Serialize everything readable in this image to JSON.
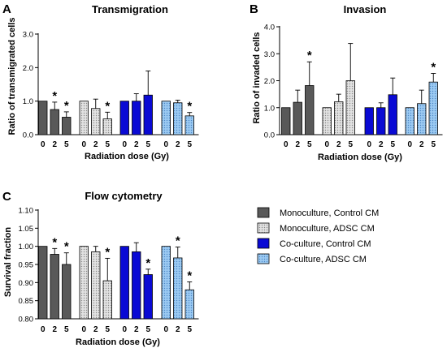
{
  "legend": [
    {
      "label": "Monoculture, Control CM",
      "color": "#595959",
      "pattern": "solid"
    },
    {
      "label": "Monoculture, ADSC CM",
      "color": "#d9d9d9",
      "pattern": "dots"
    },
    {
      "label": "Co-culture, Control CM",
      "color": "#0a0ad4",
      "pattern": "solid"
    },
    {
      "label": "Co-culture, ADSC CM",
      "color": "#8ec3f0",
      "pattern": "dots"
    }
  ],
  "chart_data": [
    {
      "panel": "A",
      "type": "bar",
      "title": "Transmigration",
      "xlabel": "Radiation dose (Gy)",
      "ylabel": "Ratio of transmigrated cells",
      "ylim": [
        0,
        3.0
      ],
      "yticks": [
        "0.0",
        "1.0",
        "2.0",
        "3.0"
      ],
      "categories": [
        "0",
        "2",
        "5"
      ],
      "series": [
        {
          "name": "Monoculture, Control CM",
          "values": [
            1.0,
            0.75,
            0.52
          ],
          "errors": [
            0,
            0.22,
            0.16
          ],
          "significant": [
            false,
            true,
            true
          ]
        },
        {
          "name": "Monoculture, ADSC CM",
          "values": [
            1.0,
            0.78,
            0.47
          ],
          "errors": [
            0,
            0.28,
            0.2
          ],
          "significant": [
            false,
            false,
            true
          ]
        },
        {
          "name": "Co-culture, Control CM",
          "values": [
            1.0,
            1.0,
            1.18
          ],
          "errors": [
            0,
            0.22,
            0.72
          ],
          "significant": [
            false,
            false,
            false
          ]
        },
        {
          "name": "Co-culture, ADSC CM",
          "values": [
            1.0,
            0.95,
            0.56
          ],
          "errors": [
            0,
            0.08,
            0.1
          ],
          "significant": [
            false,
            false,
            true
          ]
        }
      ]
    },
    {
      "panel": "B",
      "type": "bar",
      "title": "Invasion",
      "xlabel": "Radiation dose (Gy)",
      "ylabel": "Ratio of invaded cells",
      "ylim": [
        0,
        4.0
      ],
      "yticks": [
        "0.0",
        "1.0",
        "2.0",
        "3.0",
        "4.0"
      ],
      "categories": [
        "0",
        "2",
        "5"
      ],
      "series": [
        {
          "name": "Monoculture, Control CM",
          "values": [
            1.0,
            1.2,
            1.82
          ],
          "errors": [
            0,
            0.45,
            0.88
          ],
          "significant": [
            false,
            false,
            true
          ]
        },
        {
          "name": "Monoculture, ADSC CM",
          "values": [
            1.0,
            1.22,
            2.0
          ],
          "errors": [
            0,
            0.28,
            1.38
          ],
          "significant": [
            false,
            false,
            false
          ]
        },
        {
          "name": "Co-culture, Control CM",
          "values": [
            1.0,
            1.0,
            1.48
          ],
          "errors": [
            0,
            0.18,
            0.62
          ],
          "significant": [
            false,
            false,
            false
          ]
        },
        {
          "name": "Co-culture, ADSC CM",
          "values": [
            1.0,
            1.15,
            1.95
          ],
          "errors": [
            0,
            0.5,
            0.32
          ],
          "significant": [
            false,
            false,
            true
          ]
        }
      ]
    },
    {
      "panel": "C",
      "type": "bar",
      "title": "Flow cytometry",
      "xlabel": "Radiation dose (Gy)",
      "ylabel": "Survival fraction",
      "ylim": [
        0.8,
        1.1
      ],
      "yticks": [
        "0.80",
        "0.85",
        "0.90",
        "0.95",
        "1.00",
        "1.05",
        "1.10"
      ],
      "categories": [
        "0",
        "2",
        "5"
      ],
      "series": [
        {
          "name": "Monoculture, Control CM",
          "values": [
            1.0,
            0.978,
            0.95
          ],
          "errors": [
            0,
            0.016,
            0.032
          ],
          "significant": [
            false,
            true,
            true
          ]
        },
        {
          "name": "Monoculture, ADSC CM",
          "values": [
            1.0,
            0.985,
            0.905
          ],
          "errors": [
            0,
            0.015,
            0.062
          ],
          "significant": [
            false,
            false,
            true
          ]
        },
        {
          "name": "Co-culture, Control CM",
          "values": [
            1.0,
            0.985,
            0.922
          ],
          "errors": [
            0,
            0.025,
            0.015
          ],
          "significant": [
            false,
            false,
            true
          ]
        },
        {
          "name": "Co-culture, ADSC CM",
          "values": [
            1.0,
            0.968,
            0.88
          ],
          "errors": [
            0,
            0.03,
            0.022
          ],
          "significant": [
            false,
            true,
            true
          ]
        }
      ]
    }
  ]
}
